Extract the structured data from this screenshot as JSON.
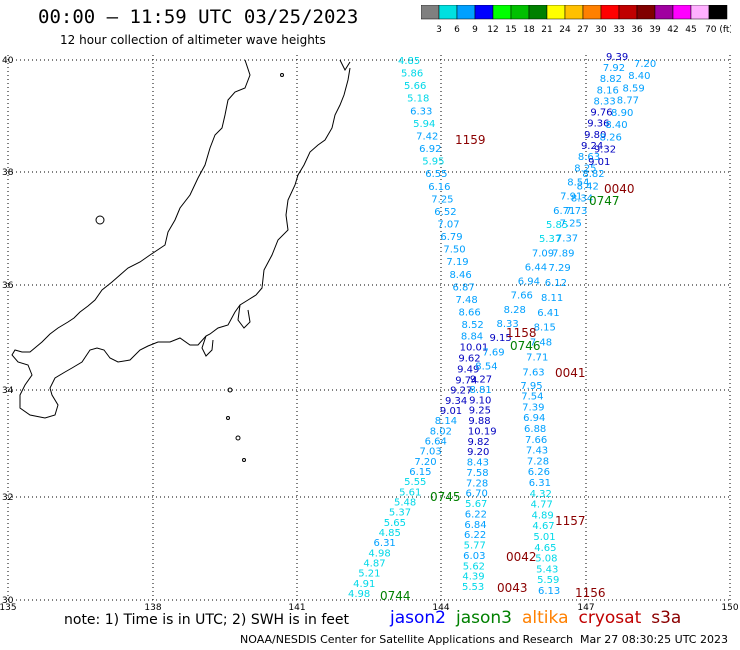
{
  "header": {
    "title": "00:00 – 11:59 UTC 03/25/2023",
    "subtitle": "12 hour collection of altimeter wave heights"
  },
  "colorbar": {
    "colors": [
      "#808080",
      "#00e0e0",
      "#00a0ff",
      "#0000ff",
      "#00ff00",
      "#00c000",
      "#008000",
      "#ffff00",
      "#ffc000",
      "#ff8000",
      "#ff0000",
      "#c00000",
      "#800000",
      "#a000a0",
      "#ff00ff",
      "#ffb0ff",
      "#000000"
    ],
    "labels": [
      "3",
      "6",
      "9",
      "12",
      "15",
      "18",
      "21",
      "24",
      "27",
      "30",
      "33",
      "36",
      "39",
      "42",
      "45",
      "70 (ft)"
    ]
  },
  "map": {
    "lon_labels": [
      "135",
      "138",
      "141",
      "144",
      "147",
      "150"
    ],
    "lat_labels": [
      "40",
      "38",
      "36",
      "34",
      "32",
      "30"
    ]
  },
  "tracks": {
    "track_a": [
      "4.85",
      "5.86",
      "5.66",
      "5.18",
      "6.33",
      "5.94",
      "7.42",
      "6.92",
      "5.95",
      "6.55",
      "6.16",
      "7.25",
      "6.52",
      "7.07",
      "6.79",
      "7.50",
      "7.19",
      "8.46",
      "6.87",
      "7.48",
      "8.66",
      "8.52",
      "8.84",
      "10.01",
      "9.62",
      "9.49",
      "9.74",
      "9.27",
      "9.34",
      "9.01",
      "8.14",
      "8.02",
      "6.64",
      "7.03",
      "7.20",
      "6.15",
      "5.55",
      "5.61",
      "5.48",
      "5.37",
      "5.65",
      "4.85",
      "6.31",
      "4.98",
      "4.87",
      "5.21",
      "4.91",
      "4.98"
    ],
    "track_b": [
      "9.39",
      "7.92",
      "8.82",
      "8.16",
      "8.33",
      "9.76",
      "9.36",
      "9.80",
      "9.24",
      "8.63",
      "8.25",
      "8.54",
      "7.91",
      "6.71",
      "5.85",
      "5.37",
      "7.09",
      "6.44",
      "6.94",
      "7.66",
      "8.28",
      "8.33",
      "9.15",
      "7.69",
      "8.54",
      "9.27",
      "8.81",
      "9.10",
      "9.25",
      "9.88",
      "10.19",
      "9.82",
      "9.20",
      "8.43",
      "7.58",
      "7.28",
      "6.70",
      "5.67",
      "6.22",
      "6.84",
      "6.22",
      "5.77",
      "6.03",
      "5.62",
      "4.39",
      "5.53"
    ],
    "track_c": [
      "7.20",
      "8.40",
      "8.59",
      "8.77",
      "8.90",
      "8.40",
      "8.26",
      "9.32",
      "9.01",
      "8.82",
      "8.42",
      "8.34",
      "7.73",
      "7.25",
      "7.37",
      "7.89",
      "7.29",
      "6.12",
      "8.11",
      "6.41",
      "8.15",
      "7.48",
      "7.71",
      "7.63",
      "7.95",
      "7.54",
      "7.39",
      "6.94",
      "6.88",
      "7.66",
      "7.43",
      "7.28",
      "6.26",
      "6.31",
      "4.32",
      "4.77",
      "4.89",
      "4.67",
      "5.01",
      "4.65",
      "5.08",
      "5.43",
      "5.59",
      "6.13"
    ],
    "labels": [
      {
        "text": "1159",
        "color": "#8b0000"
      },
      {
        "text": "0040",
        "color": "#8b0000"
      },
      {
        "text": "0747",
        "color": "#008000"
      },
      {
        "text": "1158",
        "color": "#8b0000"
      },
      {
        "text": "0746",
        "color": "#008000"
      },
      {
        "text": "0041",
        "color": "#8b0000"
      },
      {
        "text": "0745",
        "color": "#008000"
      },
      {
        "text": "1157",
        "color": "#8b0000"
      },
      {
        "text": "0042",
        "color": "#8b0000"
      },
      {
        "text": "0043",
        "color": "#8b0000"
      },
      {
        "text": "1156",
        "color": "#8b0000"
      },
      {
        "text": "0744",
        "color": "#008000"
      }
    ]
  },
  "note": "note:  1) Time is in UTC; 2) SWH is in feet",
  "legend": [
    {
      "text": "jason2",
      "color": "#0000ff"
    },
    {
      "text": "jason3",
      "color": "#008000"
    },
    {
      "text": "altika",
      "color": "#ff8000"
    },
    {
      "text": "cryosat",
      "color": "#c00000"
    },
    {
      "text": "s3a",
      "color": "#8b0000"
    }
  ],
  "footer": "NOAA/NESDIS Center for Satellite Applications and Research",
  "footer_time": "Mar 27 08:30:25 UTC 2023"
}
